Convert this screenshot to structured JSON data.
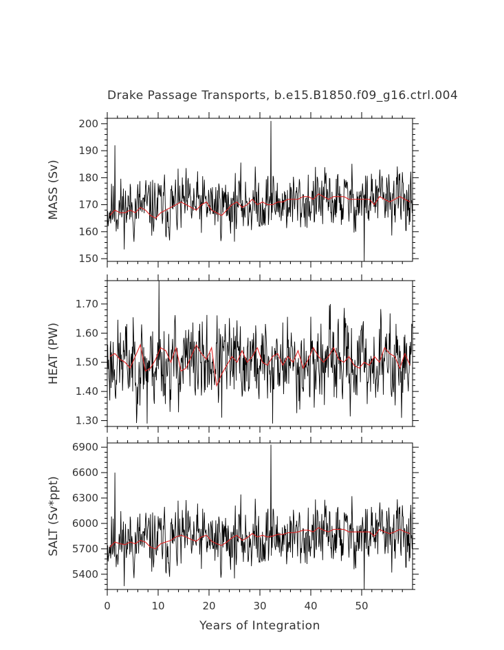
{
  "title": "Drake Passage Transports, b.e15.B1850.f09_g16.ctrl.004",
  "xlabel": "Years of Integration",
  "colors": {
    "raw": "#000000",
    "annual": "#e02020",
    "axis": "#000000"
  },
  "chart_data": [
    {
      "type": "line",
      "ylabel": "MASS (Sv)",
      "xlim": [
        0,
        60
      ],
      "ylim": [
        149,
        202
      ],
      "yticks": [
        150,
        160,
        170,
        180,
        190,
        200
      ],
      "ytick_labels": [
        "150",
        "160",
        "170",
        "180",
        "190",
        "200"
      ],
      "xticks": [
        0,
        10,
        20,
        30,
        40,
        50
      ],
      "series": [
        {
          "key": "raw",
          "mean": 168.5,
          "amp": 6.5,
          "trend": 4,
          "seed": 11,
          "spikes": [
            [
              1.5,
              192
            ],
            [
              32.2,
              201
            ],
            [
              50.5,
              149
            ]
          ]
        },
        {
          "key": "annual",
          "values": [
            166,
            168,
            167,
            167,
            168,
            167,
            169,
            168,
            166,
            165,
            167,
            168,
            169,
            170,
            171,
            170,
            169,
            168,
            170,
            171,
            168,
            167,
            166,
            168,
            170,
            171,
            169,
            170,
            172,
            170,
            171,
            170,
            170,
            171,
            171,
            172,
            172,
            172,
            173,
            173,
            172,
            174,
            173,
            172,
            173,
            173,
            173,
            172,
            172,
            172,
            172,
            172,
            170,
            173,
            172,
            171,
            172,
            173,
            172,
            171
          ]
        }
      ]
    },
    {
      "type": "line",
      "ylabel": "HEAT (PW)",
      "xlim": [
        0,
        60
      ],
      "ylim": [
        1.28,
        1.78
      ],
      "yticks": [
        1.3,
        1.4,
        1.5,
        1.6,
        1.7
      ],
      "ytick_labels": [
        "1.30",
        "1.40",
        "1.50",
        "1.60",
        "1.70"
      ],
      "xticks": [
        0,
        10,
        20,
        30,
        40,
        50
      ],
      "series": [
        {
          "key": "raw",
          "mean": 1.5,
          "amp": 0.085,
          "trend": 0,
          "seed": 23,
          "spikes": [
            [
              10.2,
              1.78
            ],
            [
              7.8,
              1.29
            ],
            [
              32.5,
              1.29
            ],
            [
              22.5,
              1.31
            ]
          ]
        },
        {
          "key": "annual",
          "values": [
            1.52,
            1.53,
            1.51,
            1.5,
            1.48,
            1.52,
            1.56,
            1.47,
            1.48,
            1.51,
            1.55,
            1.54,
            1.5,
            1.55,
            1.47,
            1.48,
            1.52,
            1.56,
            1.53,
            1.51,
            1.55,
            1.42,
            1.46,
            1.49,
            1.52,
            1.5,
            1.54,
            1.5,
            1.52,
            1.55,
            1.5,
            1.49,
            1.52,
            1.53,
            1.49,
            1.52,
            1.5,
            1.54,
            1.48,
            1.51,
            1.55,
            1.52,
            1.5,
            1.52,
            1.55,
            1.51,
            1.5,
            1.52,
            1.49,
            1.48,
            1.5,
            1.49,
            1.52,
            1.5,
            1.55,
            1.53,
            1.52,
            1.48,
            1.53,
            1.49
          ]
        }
      ]
    },
    {
      "type": "line",
      "ylabel": "SALT (Sv*ppt)",
      "xlim": [
        0,
        60
      ],
      "ylim": [
        5220,
        6950
      ],
      "yticks": [
        5400,
        5700,
        6000,
        6300,
        6600,
        6900
      ],
      "ytick_labels": [
        "5400",
        "5700",
        "6000",
        "6300",
        "6600",
        "6900"
      ],
      "xticks": [
        0,
        10,
        20,
        30,
        40,
        50
      ],
      "xtick_labels": [
        "0",
        "10",
        "20",
        "30",
        "40",
        "50"
      ],
      "series": [
        {
          "key": "raw",
          "mean": 5770,
          "amp": 220,
          "trend": 120,
          "seed": 11,
          "spikes": [
            [
              1.5,
              6600
            ],
            [
              32.2,
              6930
            ],
            [
              50.5,
              5220
            ]
          ]
        },
        {
          "key": "annual",
          "values": [
            5720,
            5780,
            5760,
            5750,
            5780,
            5760,
            5800,
            5780,
            5720,
            5700,
            5760,
            5780,
            5800,
            5840,
            5860,
            5840,
            5810,
            5790,
            5840,
            5860,
            5790,
            5760,
            5740,
            5780,
            5830,
            5860,
            5800,
            5830,
            5880,
            5840,
            5860,
            5840,
            5850,
            5870,
            5870,
            5890,
            5890,
            5900,
            5920,
            5920,
            5900,
            5950,
            5920,
            5900,
            5930,
            5930,
            5930,
            5900,
            5900,
            5900,
            5900,
            5900,
            5850,
            5930,
            5900,
            5880,
            5900,
            5930,
            5900,
            5880
          ]
        }
      ]
    }
  ]
}
